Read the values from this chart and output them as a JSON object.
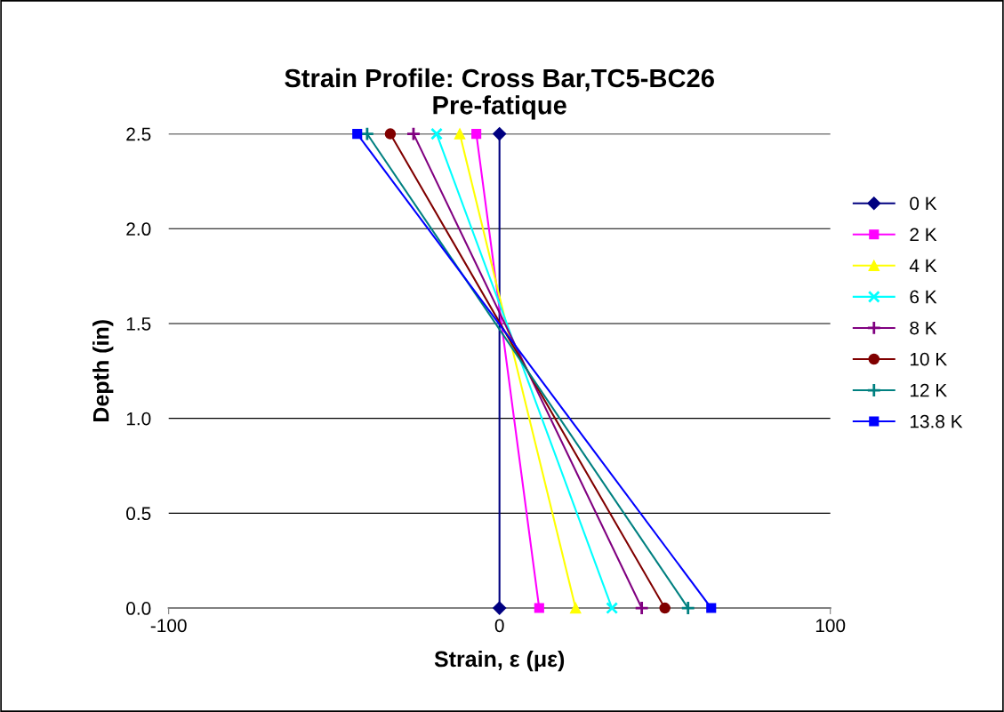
{
  "chart_data": {
    "type": "line",
    "title": "Strain Profile: Cross Bar,TC5-BC26\nPre-fatique",
    "xlabel": "Strain, ε (με)",
    "ylabel": "Depth (in)",
    "xlim": [
      -100,
      100
    ],
    "xticks": [
      -100,
      0,
      100
    ],
    "ylim": [
      0,
      2.5
    ],
    "yticks": [
      {
        "value": 0,
        "label": "0.0"
      },
      {
        "value": 0.5,
        "label": "0.5"
      },
      {
        "value": 1,
        "label": "1.0"
      },
      {
        "value": 1.5,
        "label": "1.5"
      },
      {
        "value": 2,
        "label": "2.0"
      },
      {
        "value": 2.5,
        "label": "2.5"
      }
    ],
    "grid": "y",
    "legend": "right",
    "series": [
      {
        "name": "0 K",
        "color": "#000080",
        "marker": "diamond",
        "x": [
          0,
          0
        ],
        "values": [
          0,
          2.5
        ]
      },
      {
        "name": "2 K",
        "color": "#ff00ff",
        "marker": "square",
        "x": [
          12,
          -7
        ],
        "values": [
          0,
          2.5
        ]
      },
      {
        "name": "4 K",
        "color": "#ffff00",
        "marker": "triangle",
        "x": [
          23,
          -12
        ],
        "values": [
          0,
          2.5
        ]
      },
      {
        "name": "6 K",
        "color": "#00ffff",
        "marker": "x",
        "x": [
          34,
          -19
        ],
        "values": [
          0,
          2.5
        ]
      },
      {
        "name": "8 K",
        "color": "#800080",
        "marker": "cross",
        "x": [
          43,
          -26
        ],
        "values": [
          0,
          2.5
        ]
      },
      {
        "name": "10 K",
        "color": "#800000",
        "marker": "circle",
        "x": [
          50,
          -33
        ],
        "values": [
          0,
          2.5
        ]
      },
      {
        "name": "12 K",
        "color": "#008080",
        "marker": "cross",
        "x": [
          57,
          -40
        ],
        "values": [
          0,
          2.5
        ]
      },
      {
        "name": "13.8 K",
        "color": "#0000ff",
        "marker": "square",
        "x": [
          64,
          -43
        ],
        "values": [
          0,
          2.5
        ]
      }
    ]
  }
}
